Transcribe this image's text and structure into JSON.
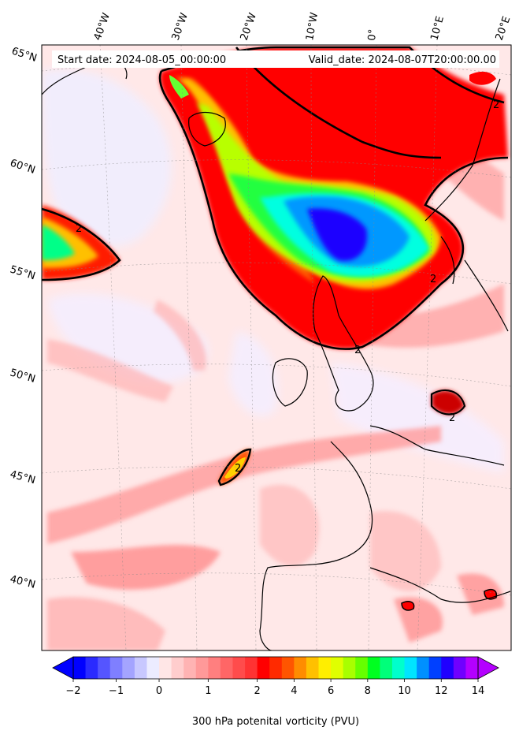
{
  "header": {
    "start_date": "Start date: 2024-08-05_00:00:00",
    "valid_date": "Valid_date: 2024-08-07T20:00:00.00"
  },
  "map": {
    "projection_hint": "stereographic north-atlantic",
    "lon_labels": [
      "40°W",
      "30°W",
      "20°W",
      "10°W",
      "0°",
      "10°E",
      "20°E"
    ],
    "lat_labels": [
      "65°N",
      "60°N",
      "55°N",
      "50°N",
      "45°N",
      "40°N"
    ],
    "contour_level_label": "2",
    "colors": {
      "background": "#ffe6e6",
      "land_outline": "#000000",
      "contour": "#000000"
    }
  },
  "colorbar": {
    "label": "300 hPa potenital vorticity (PVU)",
    "tick_labels": [
      "−2",
      "−1",
      "0",
      "1",
      "2",
      "4",
      "6",
      "8",
      "10",
      "12",
      "14"
    ],
    "colors": [
      "#0000ff",
      "#2a2aff",
      "#5555ff",
      "#7f7fff",
      "#a4a4ff",
      "#c8c8ff",
      "#ececff",
      "#ffe6e6",
      "#ffcdcd",
      "#ffb3b3",
      "#ff9999",
      "#ff7f7f",
      "#ff6666",
      "#ff4c4c",
      "#ff3333",
      "#ff0000",
      "#ff2a00",
      "#ff5500",
      "#ff8c00",
      "#ffc000",
      "#ffee00",
      "#e0ff00",
      "#a8ff00",
      "#66ff00",
      "#00ff20",
      "#00ff7a",
      "#00ffcc",
      "#00e5ff",
      "#0090ff",
      "#0040ff",
      "#2000ff",
      "#7000ff",
      "#b400ff"
    ]
  }
}
